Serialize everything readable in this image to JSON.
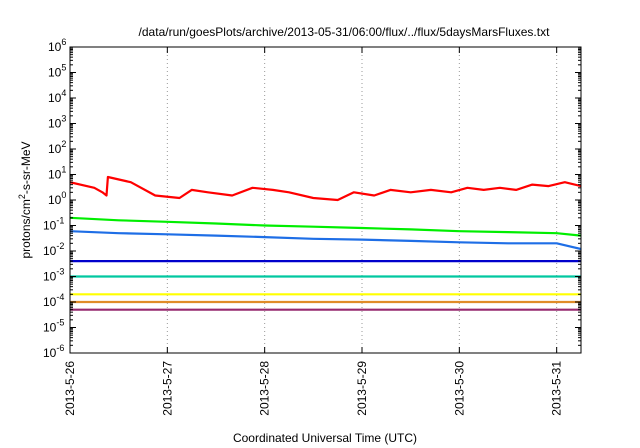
{
  "chart_data": {
    "type": "line",
    "title": "/data/run/goesPlots/archive/2013-05-31/06:00/flux/../flux/5daysMarsFluxes.txt",
    "xlabel": "Coordinated Universal Time (UTC)",
    "ylabel": {
      "prefix": "protons/cm",
      "superscript": "2",
      "suffix": "-s-sr-MeV"
    },
    "y_scale": "log",
    "ylim": [
      1e-06,
      1000000.0
    ],
    "xlim": [
      "2013-05-26 00:00",
      "2013-05-31 06:00"
    ],
    "x_tick_labels": [
      "2013-5-26",
      "2013-5-27",
      "2013-5-28",
      "2013-5-29",
      "2013-5-30",
      "2013-5-31"
    ],
    "y_tick_labels": [
      {
        "base": "10",
        "exp": "-6"
      },
      {
        "base": "10",
        "exp": "-5"
      },
      {
        "base": "10",
        "exp": "-4"
      },
      {
        "base": "10",
        "exp": "-3"
      },
      {
        "base": "10",
        "exp": "-2"
      },
      {
        "base": "10",
        "exp": "-1"
      },
      {
        "base": "10",
        "exp": "0"
      },
      {
        "base": "10",
        "exp": "1"
      },
      {
        "base": "10",
        "exp": "2"
      },
      {
        "base": "10",
        "exp": "3"
      },
      {
        "base": "10",
        "exp": "4"
      },
      {
        "base": "10",
        "exp": "5"
      },
      {
        "base": "10",
        "exp": "6"
      }
    ],
    "grid": "vertical dotted at day ticks",
    "legend": "none",
    "series": [
      {
        "color": "#ff0000",
        "x": [
          "2013-05-26 00:00",
          "2013-05-26 06:00",
          "2013-05-26 08:00",
          "2013-05-26 09:00",
          "2013-05-26 09:20",
          "2013-05-26 15:00",
          "2013-05-26 21:00",
          "2013-05-27 03:00",
          "2013-05-27 06:00",
          "2013-05-27 10:00",
          "2013-05-27 16:00",
          "2013-05-27 21:00",
          "2013-05-28 02:00",
          "2013-05-28 06:00",
          "2013-05-28 12:00",
          "2013-05-28 18:00",
          "2013-05-28 22:00",
          "2013-05-29 03:00",
          "2013-05-29 07:00",
          "2013-05-29 12:00",
          "2013-05-29 17:00",
          "2013-05-29 22:00",
          "2013-05-30 02:00",
          "2013-05-30 06:00",
          "2013-05-30 10:00",
          "2013-05-30 14:00",
          "2013-05-30 18:00",
          "2013-05-30 22:00",
          "2013-05-31 02:00",
          "2013-05-31 06:00"
        ],
        "y": [
          5,
          3,
          2,
          1.5,
          8,
          5,
          1.5,
          1.2,
          2.5,
          2,
          1.5,
          3,
          2.5,
          2,
          1.2,
          1,
          2,
          1.5,
          2.5,
          2,
          2.5,
          2,
          3,
          2.5,
          3,
          2.5,
          4,
          3.5,
          5,
          3.5
        ]
      },
      {
        "color": "#00ee00",
        "x": [
          "2013-05-26 00:00",
          "2013-05-26 12:00",
          "2013-05-27 00:00",
          "2013-05-27 12:00",
          "2013-05-28 00:00",
          "2013-05-28 12:00",
          "2013-05-29 00:00",
          "2013-05-29 12:00",
          "2013-05-30 00:00",
          "2013-05-30 12:00",
          "2013-05-31 00:00",
          "2013-05-31 06:00"
        ],
        "y": [
          0.2,
          0.16,
          0.14,
          0.12,
          0.1,
          0.09,
          0.08,
          0.07,
          0.06,
          0.055,
          0.05,
          0.04
        ]
      },
      {
        "color": "#1e6ee6",
        "x": [
          "2013-05-26 00:00",
          "2013-05-26 12:00",
          "2013-05-27 00:00",
          "2013-05-27 12:00",
          "2013-05-28 00:00",
          "2013-05-28 12:00",
          "2013-05-29 00:00",
          "2013-05-29 12:00",
          "2013-05-30 00:00",
          "2013-05-30 12:00",
          "2013-05-31 00:00",
          "2013-05-31 06:00"
        ],
        "y": [
          0.06,
          0.05,
          0.045,
          0.04,
          0.035,
          0.03,
          0.028,
          0.025,
          0.022,
          0.02,
          0.02,
          0.012
        ]
      },
      {
        "color": "#0000cc",
        "x": [
          "2013-05-26 00:00",
          "2013-05-27 00:00",
          "2013-05-28 00:00",
          "2013-05-29 00:00",
          "2013-05-30 00:00",
          "2013-05-31 00:00",
          "2013-05-31 06:00"
        ],
        "y": [
          0.004,
          0.004,
          0.004,
          0.004,
          0.004,
          0.004,
          0.004
        ]
      },
      {
        "color": "#00c8a0",
        "x": [
          "2013-05-26 00:00",
          "2013-05-27 00:00",
          "2013-05-28 00:00",
          "2013-05-29 00:00",
          "2013-05-30 00:00",
          "2013-05-31 00:00",
          "2013-05-31 06:00"
        ],
        "y": [
          0.001,
          0.001,
          0.001,
          0.001,
          0.001,
          0.001,
          0.001
        ]
      },
      {
        "color": "#ffff00",
        "x": [
          "2013-05-26 00:00",
          "2013-05-27 00:00",
          "2013-05-28 00:00",
          "2013-05-29 00:00",
          "2013-05-30 00:00",
          "2013-05-31 00:00",
          "2013-05-31 06:00"
        ],
        "y": [
          0.0002,
          0.0002,
          0.0002,
          0.0002,
          0.0002,
          0.0002,
          0.0002
        ]
      },
      {
        "color": "#e08c28",
        "x": [
          "2013-05-26 00:00",
          "2013-05-27 00:00",
          "2013-05-28 00:00",
          "2013-05-29 00:00",
          "2013-05-30 00:00",
          "2013-05-31 00:00",
          "2013-05-31 06:00"
        ],
        "y": [
          0.0001,
          0.0001,
          0.0001,
          0.0001,
          0.0001,
          0.0001,
          0.0001
        ]
      },
      {
        "color": "#96286e",
        "x": [
          "2013-05-26 00:00",
          "2013-05-27 00:00",
          "2013-05-28 00:00",
          "2013-05-29 00:00",
          "2013-05-30 00:00",
          "2013-05-31 00:00",
          "2013-05-31 06:00"
        ],
        "y": [
          5e-05,
          5e-05,
          5e-05,
          5e-05,
          5e-05,
          5e-05,
          5e-05
        ]
      }
    ]
  }
}
